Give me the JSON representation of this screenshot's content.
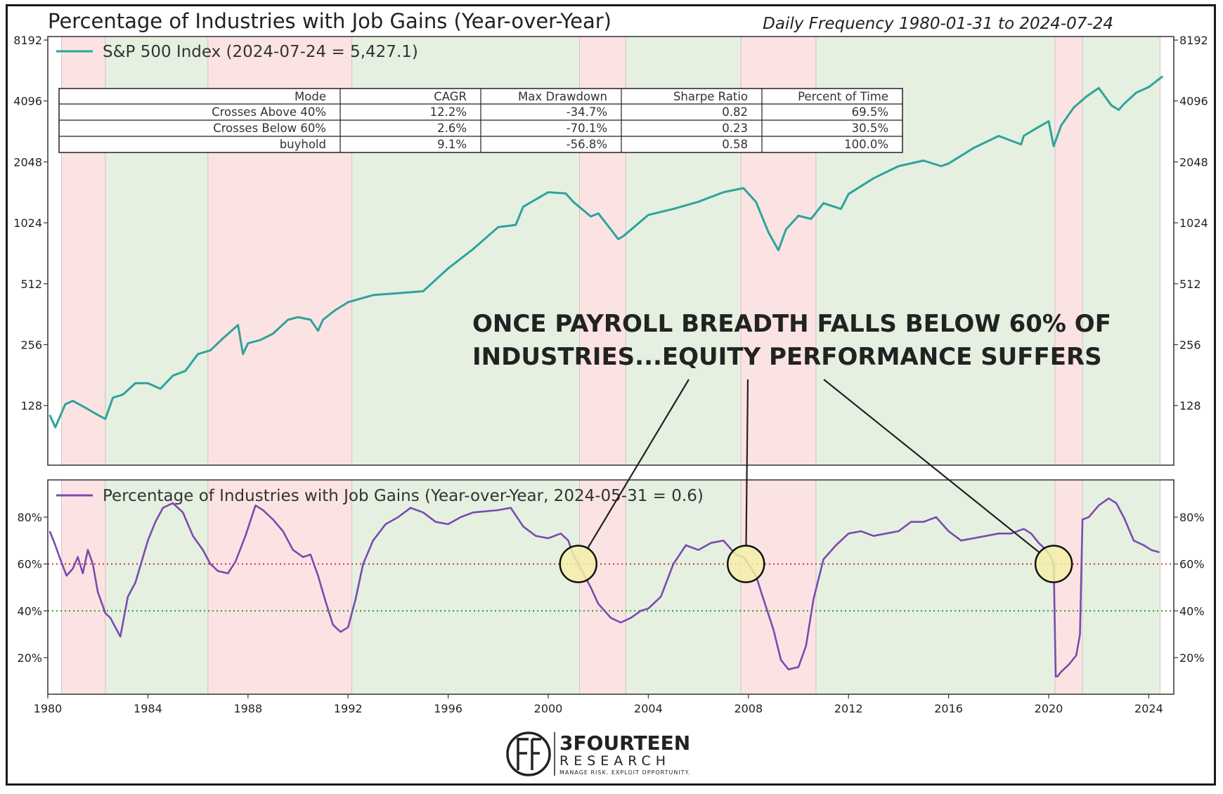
{
  "title": "Percentage of Industries with Job Gains (Year-over-Year)",
  "subtitle": "Daily Frequency 1980-01-31 to 2024-07-24",
  "annotation": {
    "line1": "ONCE PAYROLL BREADTH FALLS BELOW 60% OF",
    "line2": "INDUSTRIES...EQUITY PERFORMANCE SUFFERS"
  },
  "logo": {
    "name": "3FOURTEEN",
    "sub": "RESEARCH",
    "tagline": "MANAGE RISK. EXPLOIT OPPORTUNITY."
  },
  "colors": {
    "sp500": "#2ea39a",
    "breadth": "#7b4ab0",
    "green_region": "#e5f0e1",
    "red_region": "#fbe3e3",
    "red_threshold": "#e03030",
    "green_threshold": "#2a9a2a",
    "callout_circle": "#f3eea8"
  },
  "table": {
    "headers": [
      "Mode",
      "CAGR",
      "Max Drawdown",
      "Sharpe Ratio",
      "Percent of Time"
    ],
    "rows": [
      [
        "Crosses Above 40%",
        "12.2%",
        "-34.7%",
        "0.82",
        "69.5%"
      ],
      [
        "Crosses Below 60%",
        "2.6%",
        "-70.1%",
        "0.23",
        "30.5%"
      ],
      [
        "buyhold",
        "9.1%",
        "-56.8%",
        "0.58",
        "100.0%"
      ]
    ]
  },
  "chart_data": [
    {
      "type": "line",
      "panel": "top",
      "scale": "log2",
      "legend": "S&P 500 Index (2024-07-24 = 5,427.1)",
      "legend_position": "top-left",
      "grid": false,
      "ylim": [
        64,
        8192
      ],
      "xlim": [
        1980,
        2025
      ],
      "yticks": [
        128,
        256,
        512,
        1024,
        2048,
        4096,
        8192
      ],
      "ytick_labels": [
        "128",
        "256",
        "512",
        "1024",
        "2048",
        "4096",
        "8192"
      ],
      "series": [
        {
          "x": [
            1980.08,
            1980.3,
            1980.7,
            1981.0,
            1981.5,
            1982.0,
            1982.3,
            1982.6,
            1983.0,
            1983.5,
            1984.0,
            1984.5,
            1985.0,
            1985.5,
            1986.0,
            1986.5,
            1987.0,
            1987.6,
            1987.8,
            1988.0,
            1988.5,
            1989.0,
            1989.6,
            1990.0,
            1990.5,
            1990.8,
            1991.0,
            1991.5,
            1992.0,
            1993.0,
            1994.0,
            1995.0,
            1996.0,
            1997.0,
            1998.0,
            1998.7,
            1999.0,
            2000.0,
            2000.7,
            2001.0,
            2001.7,
            2002.0,
            2002.5,
            2002.8,
            2003.0,
            2004.0,
            2005.0,
            2006.0,
            2007.0,
            2007.8,
            2008.3,
            2008.8,
            2009.2,
            2009.5,
            2010.0,
            2010.5,
            2011.0,
            2011.7,
            2012.0,
            2013.0,
            2014.0,
            2015.0,
            2015.7,
            2016.0,
            2017.0,
            2018.0,
            2018.9,
            2019.0,
            2019.5,
            2020.0,
            2020.2,
            2020.5,
            2021.0,
            2021.5,
            2022.0,
            2022.5,
            2022.8,
            2023.0,
            2023.5,
            2024.0,
            2024.56
          ],
          "values": [
            115,
            100,
            130,
            135,
            125,
            115,
            110,
            140,
            145,
            165,
            165,
            155,
            180,
            190,
            230,
            240,
            275,
            320,
            230,
            260,
            270,
            290,
            340,
            350,
            340,
            300,
            340,
            380,
            415,
            450,
            460,
            470,
            610,
            760,
            975,
            1000,
            1230,
            1450,
            1430,
            1300,
            1100,
            1140,
            950,
            850,
            880,
            1120,
            1200,
            1300,
            1450,
            1520,
            1300,
            920,
            750,
            950,
            1110,
            1070,
            1280,
            1200,
            1420,
            1700,
            1950,
            2080,
            1950,
            2010,
            2400,
            2750,
            2500,
            2750,
            3000,
            3250,
            2450,
            3100,
            3800,
            4300,
            4750,
            3900,
            3700,
            3950,
            4500,
            4800,
            5427
          ]
        }
      ]
    },
    {
      "type": "line",
      "panel": "bottom",
      "legend": "Percentage of Industries with Job Gains (Year-over-Year, 2024-05-31 = 0.6)",
      "legend_position": "top-left",
      "grid": false,
      "ylim": [
        0.05,
        0.95
      ],
      "xlim": [
        1980,
        2025
      ],
      "yticks": [
        0.2,
        0.4,
        0.6,
        0.8
      ],
      "ytick_labels": [
        "20%",
        "40%",
        "60%",
        "80%"
      ],
      "xticks": [
        1980,
        1984,
        1988,
        1992,
        1996,
        2000,
        2004,
        2008,
        2012,
        2016,
        2020,
        2024
      ],
      "xtick_labels": [
        "1980",
        "1984",
        "1988",
        "1992",
        "1996",
        "2000",
        "2004",
        "2008",
        "2012",
        "2016",
        "2020",
        "2024"
      ],
      "thresholds": [
        0.6,
        0.4
      ],
      "series": [
        {
          "x": [
            1980.08,
            1980.3,
            1980.5,
            1980.75,
            1981.0,
            1981.2,
            1981.4,
            1981.6,
            1981.8,
            1982.0,
            1982.3,
            1982.5,
            1982.7,
            1982.9,
            1983.2,
            1983.5,
            1984.0,
            1984.3,
            1984.6,
            1985.0,
            1985.4,
            1985.8,
            1986.2,
            1986.5,
            1986.8,
            1987.2,
            1987.5,
            1987.9,
            1988.3,
            1988.6,
            1989.0,
            1989.4,
            1989.8,
            1990.2,
            1990.5,
            1990.8,
            1991.1,
            1991.4,
            1991.7,
            1992.0,
            1992.3,
            1992.6,
            1993.0,
            1993.5,
            1994.0,
            1994.5,
            1995.0,
            1995.5,
            1996.0,
            1996.5,
            1997.0,
            1998.0,
            1998.5,
            1999.0,
            1999.5,
            2000.0,
            2000.5,
            2000.8,
            2001.0,
            2001.3,
            2001.7,
            2002.0,
            2002.5,
            2002.9,
            2003.3,
            2003.7,
            2004.0,
            2004.5,
            2005.0,
            2005.5,
            2006.0,
            2006.5,
            2007.0,
            2007.5,
            2007.8,
            2008.0,
            2008.3,
            2008.6,
            2009.0,
            2009.3,
            2009.6,
            2010.0,
            2010.3,
            2010.6,
            2011.0,
            2011.5,
            2012.0,
            2012.5,
            2013.0,
            2013.5,
            2014.0,
            2014.5,
            2015.0,
            2015.5,
            2016.0,
            2016.5,
            2017.0,
            2017.5,
            2018.0,
            2018.5,
            2019.0,
            2019.3,
            2019.6,
            2019.9,
            2020.1,
            2020.2,
            2020.28,
            2020.35,
            2020.5,
            2020.8,
            2021.1,
            2021.25,
            2021.35,
            2021.6,
            2022.0,
            2022.4,
            2022.7,
            2023.0,
            2023.4,
            2023.8,
            2024.1,
            2024.42
          ],
          "values": [
            0.74,
            0.68,
            0.62,
            0.55,
            0.58,
            0.63,
            0.56,
            0.66,
            0.6,
            0.48,
            0.39,
            0.37,
            0.33,
            0.29,
            0.46,
            0.52,
            0.7,
            0.78,
            0.84,
            0.86,
            0.82,
            0.72,
            0.66,
            0.6,
            0.57,
            0.56,
            0.61,
            0.72,
            0.85,
            0.83,
            0.79,
            0.74,
            0.66,
            0.63,
            0.64,
            0.55,
            0.44,
            0.34,
            0.31,
            0.33,
            0.45,
            0.6,
            0.7,
            0.77,
            0.8,
            0.84,
            0.82,
            0.78,
            0.77,
            0.8,
            0.82,
            0.83,
            0.84,
            0.76,
            0.72,
            0.71,
            0.73,
            0.7,
            0.64,
            0.58,
            0.5,
            0.43,
            0.37,
            0.35,
            0.37,
            0.4,
            0.41,
            0.46,
            0.6,
            0.68,
            0.66,
            0.69,
            0.7,
            0.64,
            0.63,
            0.6,
            0.55,
            0.45,
            0.32,
            0.19,
            0.15,
            0.16,
            0.25,
            0.45,
            0.62,
            0.68,
            0.73,
            0.74,
            0.72,
            0.73,
            0.74,
            0.78,
            0.78,
            0.8,
            0.74,
            0.7,
            0.71,
            0.72,
            0.73,
            0.73,
            0.75,
            0.73,
            0.69,
            0.66,
            0.63,
            0.6,
            0.12,
            0.12,
            0.14,
            0.17,
            0.21,
            0.3,
            0.79,
            0.8,
            0.85,
            0.88,
            0.86,
            0.8,
            0.7,
            0.68,
            0.66,
            0.65
          ]
        }
      ]
    }
  ],
  "regions": [
    {
      "from": 1980.08,
      "to": 1980.55,
      "type": "none"
    },
    {
      "from": 1980.55,
      "to": 1982.3,
      "type": "red"
    },
    {
      "from": 1982.3,
      "to": 1986.4,
      "type": "green"
    },
    {
      "from": 1986.4,
      "to": 1992.15,
      "type": "red"
    },
    {
      "from": 1992.15,
      "to": 2001.25,
      "type": "green"
    },
    {
      "from": 2001.25,
      "to": 2003.1,
      "type": "red"
    },
    {
      "from": 2003.1,
      "to": 2007.7,
      "type": "green"
    },
    {
      "from": 2007.7,
      "to": 2010.7,
      "type": "red"
    },
    {
      "from": 2010.7,
      "to": 2020.25,
      "type": "green"
    },
    {
      "from": 2020.25,
      "to": 2021.35,
      "type": "red"
    },
    {
      "from": 2021.35,
      "to": 2024.45,
      "type": "green"
    }
  ],
  "callout_points": [
    {
      "x": 2001.2,
      "y": 0.6
    },
    {
      "x": 2007.9,
      "y": 0.6
    },
    {
      "x": 2020.2,
      "y": 0.6
    }
  ]
}
